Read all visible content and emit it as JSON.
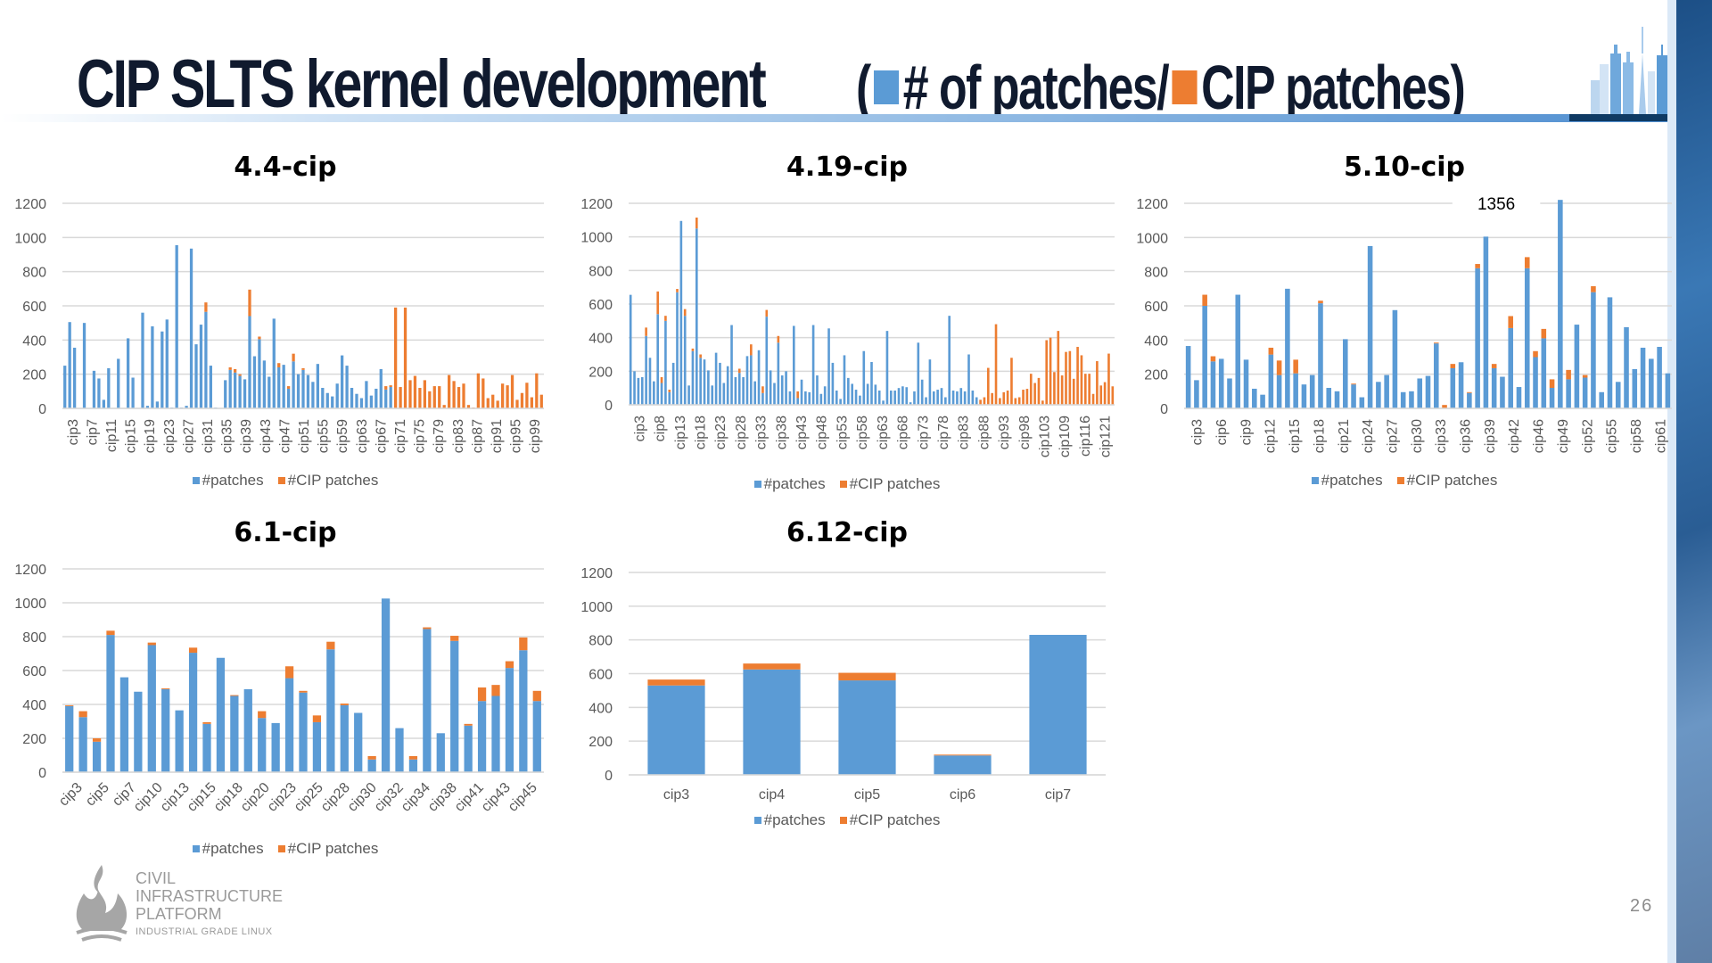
{
  "slide": {
    "title_main": "CIP SLTS kernel development",
    "title_sub_open": "(",
    "title_sub_part1": "# of patches/",
    "title_sub_part2": "CIP patches)",
    "page_number": "26",
    "logo": {
      "line1": "CIVIL",
      "line2": "INFRASTRUCTURE",
      "line3": "PLATFORM",
      "tagline": "INDUSTRIAL GRADE LINUX"
    },
    "colors": {
      "patches": "#5b9bd5",
      "cip_patches": "#ed7d31",
      "title": "#101a2e",
      "grid": "#d9d9d9",
      "axis_text": "#595959"
    }
  },
  "chart_data": [
    {
      "id": "4.4-cip",
      "type": "bar",
      "stacked": true,
      "title": "4.4-cip",
      "ylim": [
        0,
        1200
      ],
      "yticks": [
        0,
        200,
        400,
        600,
        800,
        1000,
        1200
      ],
      "grid": true,
      "legend": [
        "#patches",
        "#CIP patches"
      ],
      "legend_position": "bottom",
      "tick_labels": [
        "cip3",
        "cip7",
        "cip11",
        "cip15",
        "cip19",
        "cip23",
        "cip27",
        "cip31",
        "cip35",
        "cip39",
        "cip43",
        "cip47",
        "cip51",
        "cip55",
        "cip59",
        "cip63",
        "cip67",
        "cip71",
        "cip75",
        "cip79",
        "cip83",
        "cip87",
        "cip91",
        "cip95",
        "cip99"
      ],
      "x_start": 3,
      "series": [
        {
          "name": "#patches",
          "values": [
            250,
            505,
            355,
            0,
            500,
            0,
            220,
            175,
            50,
            235,
            0,
            290,
            0,
            410,
            180,
            0,
            560,
            15,
            480,
            40,
            450,
            520,
            5,
            955,
            5,
            15,
            935,
            375,
            490,
            565,
            250,
            5,
            0,
            165,
            225,
            210,
            190,
            170,
            540,
            305,
            405,
            280,
            185,
            525,
            240,
            255,
            115,
            275,
            200,
            225,
            195,
            155,
            260,
            120,
            90,
            70,
            145,
            310,
            250,
            120,
            85,
            60,
            160,
            75,
            115,
            230,
            110,
            125,
            0,
            0,
            0,
            0,
            0,
            0,
            0,
            0,
            0,
            0,
            0,
            0,
            0,
            0,
            0,
            0,
            0,
            0,
            0,
            0,
            0,
            0,
            0,
            0,
            0,
            0,
            0,
            0,
            0,
            0,
            0
          ]
        },
        {
          "name": "#CIP patches",
          "values": [
            0,
            0,
            0,
            0,
            0,
            0,
            0,
            0,
            0,
            0,
            0,
            0,
            0,
            0,
            0,
            0,
            0,
            0,
            0,
            0,
            0,
            0,
            0,
            0,
            0,
            0,
            0,
            0,
            0,
            55,
            0,
            0,
            0,
            0,
            15,
            20,
            10,
            0,
            155,
            0,
            15,
            0,
            0,
            0,
            25,
            0,
            15,
            45,
            0,
            10,
            0,
            0,
            0,
            0,
            0,
            0,
            0,
            0,
            0,
            0,
            0,
            0,
            0,
            0,
            0,
            0,
            20,
            10,
            590,
            125,
            590,
            165,
            190,
            120,
            165,
            100,
            130,
            130,
            20,
            195,
            160,
            125,
            145,
            20,
            5,
            205,
            175,
            60,
            80,
            45,
            145,
            135,
            195,
            50,
            90,
            150,
            65,
            205,
            80,
            85,
            160
          ]
        }
      ]
    },
    {
      "id": "4.19-cip",
      "type": "bar",
      "stacked": true,
      "title": "4.19-cip",
      "ylim": [
        0,
        1200
      ],
      "yticks": [
        0,
        200,
        400,
        600,
        800,
        1000,
        1200
      ],
      "grid": true,
      "legend": [
        "#patches",
        "#CIP patches"
      ],
      "legend_position": "bottom",
      "tick_labels": [
        "cip3",
        "cip8",
        "cip13",
        "cip18",
        "cip23",
        "cip28",
        "cip33",
        "cip38",
        "cip43",
        "cip48",
        "cip53",
        "cip58",
        "cip63",
        "cip68",
        "cip73",
        "cip78",
        "cip83",
        "cip88",
        "cip93",
        "cip98",
        "cip103",
        "cip109",
        "cip116",
        "cip121"
      ],
      "x_start": 3,
      "series": [
        {
          "name": "#patches",
          "values": [
            655,
            200,
            160,
            165,
            410,
            280,
            140,
            540,
            130,
            500,
            75,
            250,
            670,
            1095,
            530,
            115,
            320,
            1050,
            280,
            270,
            205,
            115,
            310,
            250,
            130,
            230,
            475,
            165,
            190,
            165,
            290,
            295,
            140,
            325,
            70,
            525,
            205,
            130,
            370,
            175,
            200,
            80,
            470,
            40,
            150,
            80,
            75,
            475,
            175,
            65,
            110,
            455,
            250,
            85,
            35,
            295,
            160,
            125,
            90,
            55,
            320,
            125,
            255,
            120,
            85,
            25,
            440,
            85,
            85,
            100,
            110,
            105,
            15,
            80,
            370,
            150,
            45,
            270,
            80,
            90,
            100,
            45,
            530,
            85,
            80,
            100,
            80,
            300,
            85,
            45,
            0,
            0,
            0,
            0,
            0,
            0,
            0,
            0,
            0,
            0,
            0,
            0,
            0,
            0,
            0,
            0,
            0,
            0,
            0,
            0,
            0,
            0,
            0,
            0,
            0,
            0,
            0,
            0,
            0,
            0,
            0,
            0,
            0,
            0,
            0
          ]
        },
        {
          "name": "#CIP patches",
          "values": [
            0,
            0,
            0,
            0,
            50,
            0,
            0,
            135,
            35,
            30,
            15,
            0,
            20,
            0,
            40,
            0,
            15,
            65,
            20,
            0,
            0,
            0,
            0,
            0,
            0,
            0,
            0,
            0,
            25,
            0,
            0,
            65,
            0,
            0,
            40,
            40,
            0,
            0,
            40,
            0,
            0,
            0,
            0,
            40,
            0,
            0,
            0,
            0,
            0,
            0,
            0,
            0,
            0,
            0,
            0,
            0,
            0,
            0,
            0,
            0,
            0,
            0,
            0,
            0,
            0,
            0,
            0,
            0,
            0,
            0,
            0,
            0,
            0,
            0,
            0,
            0,
            0,
            0,
            0,
            0,
            0,
            0,
            0,
            0,
            0,
            0,
            0,
            0,
            0,
            0,
            30,
            45,
            220,
            70,
            480,
            40,
            75,
            85,
            280,
            40,
            45,
            90,
            95,
            185,
            130,
            160,
            25,
            385,
            400,
            195,
            440,
            175,
            315,
            320,
            155,
            345,
            295,
            185,
            185,
            65,
            260,
            115,
            135,
            305,
            110
          ]
        }
      ]
    },
    {
      "id": "5.10-cip",
      "type": "bar",
      "stacked": true,
      "title": "5.10-cip",
      "ylim": [
        0,
        1200
      ],
      "yticks": [
        0,
        200,
        400,
        600,
        800,
        1000,
        1200
      ],
      "grid": true,
      "legend": [
        "#patches",
        "#CIP patches"
      ],
      "legend_position": "bottom",
      "annotations": [
        {
          "text": "1356",
          "category": "cip49"
        }
      ],
      "tick_labels": [
        "cip3",
        "cip6",
        "cip9",
        "cip12",
        "cip15",
        "cip18",
        "cip21",
        "cip24",
        "cip27",
        "cip30",
        "cip33",
        "cip36",
        "cip39",
        "cip42",
        "cip46",
        "cip49",
        "cip52",
        "cip55",
        "cip58",
        "cip61"
      ],
      "x_start": 3,
      "series": [
        {
          "name": "#patches",
          "values": [
            365,
            165,
            600,
            275,
            290,
            175,
            665,
            285,
            115,
            80,
            315,
            195,
            700,
            205,
            140,
            195,
            615,
            120,
            100,
            405,
            140,
            65,
            950,
            155,
            195,
            575,
            95,
            100,
            175,
            190,
            380,
            0,
            235,
            270,
            90,
            820,
            1005,
            235,
            185,
            470,
            125,
            820,
            300,
            410,
            120,
            1356,
            170,
            490,
            180,
            680,
            95,
            650,
            155,
            475,
            230,
            355,
            290,
            360,
            205
          ]
        },
        {
          "name": "#CIP patches",
          "values": [
            0,
            0,
            65,
            30,
            0,
            0,
            0,
            0,
            0,
            0,
            40,
            85,
            0,
            80,
            0,
            0,
            15,
            0,
            0,
            0,
            5,
            0,
            0,
            0,
            0,
            0,
            0,
            0,
            0,
            0,
            5,
            20,
            25,
            0,
            5,
            25,
            0,
            25,
            0,
            70,
            0,
            65,
            35,
            55,
            50,
            0,
            55,
            0,
            15,
            35,
            0,
            0,
            0,
            0,
            0,
            0,
            0,
            0,
            0
          ]
        }
      ]
    },
    {
      "id": "6.1-cip",
      "type": "bar",
      "stacked": true,
      "title": "6.1-cip",
      "ylim": [
        0,
        1200
      ],
      "yticks": [
        0,
        200,
        400,
        600,
        800,
        1000,
        1200
      ],
      "grid": true,
      "legend": [
        "#patches",
        "#CIP patches"
      ],
      "legend_position": "bottom",
      "tick_labels": [
        "cip3",
        "cip5",
        "cip7",
        "cip10",
        "cip13",
        "cip15",
        "cip18",
        "cip20",
        "cip23",
        "cip25",
        "cip28",
        "cip30",
        "cip32",
        "cip34",
        "cip38",
        "cip41",
        "cip43",
        "cip45"
      ],
      "x_start": 3,
      "series": [
        {
          "name": "#patches",
          "values": [
            390,
            325,
            180,
            810,
            560,
            475,
            750,
            490,
            365,
            705,
            285,
            675,
            450,
            490,
            320,
            290,
            555,
            470,
            295,
            725,
            395,
            350,
            75,
            1025,
            260,
            75,
            845,
            230,
            775,
            275,
            420,
            450,
            615,
            720,
            420
          ]
        },
        {
          "name": "#CIP patches",
          "values": [
            5,
            35,
            20,
            25,
            0,
            0,
            15,
            5,
            0,
            30,
            10,
            0,
            5,
            0,
            40,
            0,
            70,
            10,
            40,
            45,
            10,
            0,
            20,
            0,
            0,
            20,
            10,
            0,
            30,
            10,
            80,
            65,
            40,
            75,
            60
          ]
        }
      ]
    },
    {
      "id": "6.12-cip",
      "type": "bar",
      "stacked": true,
      "title": "6.12-cip",
      "ylim": [
        0,
        1200
      ],
      "yticks": [
        0,
        200,
        400,
        600,
        800,
        1000,
        1200
      ],
      "grid": true,
      "legend": [
        "#patches",
        "#CIP patches"
      ],
      "legend_position": "bottom",
      "tick_labels": [
        "cip3",
        "cip4",
        "cip5",
        "cip6",
        "cip7"
      ],
      "categories": [
        "cip3",
        "cip4",
        "cip5",
        "cip6",
        "cip7"
      ],
      "series": [
        {
          "name": "#patches",
          "values": [
            530,
            625,
            560,
            115,
            830
          ]
        },
        {
          "name": "#CIP patches",
          "values": [
            35,
            35,
            45,
            5,
            0
          ]
        }
      ]
    }
  ]
}
